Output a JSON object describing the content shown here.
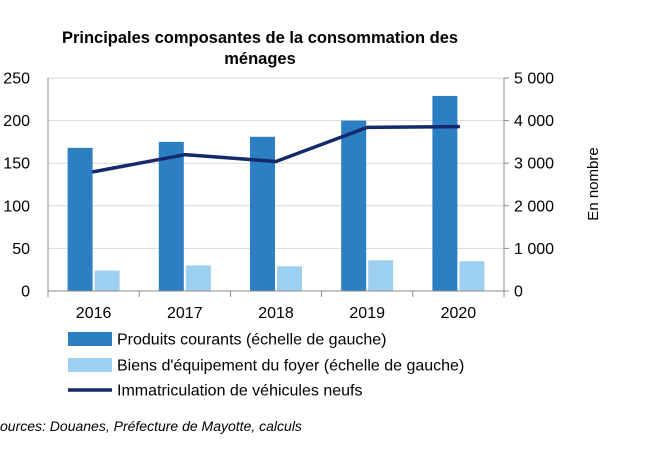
{
  "chart_data": {
    "type": "bar",
    "title_line1": "Principales composantes de la consommation des",
    "title_line2": "ménages",
    "categories": [
      "2016",
      "2017",
      "2018",
      "2019",
      "2020"
    ],
    "left_axis": {
      "ylim": [
        0,
        250
      ],
      "ticks": [
        "0",
        "50",
        "100",
        "150",
        "200",
        "250"
      ]
    },
    "right_axis": {
      "ylim": [
        0,
        5000
      ],
      "label": "En nombre",
      "ticks": [
        "0",
        "1 000",
        "2 000",
        "3 000",
        "4 000",
        "5 000"
      ]
    },
    "series": [
      {
        "name": "Produits courants (échelle de gauche)",
        "type": "bar",
        "axis": "left",
        "color": "#2b7fc2",
        "values": [
          168,
          175,
          181,
          200,
          229
        ]
      },
      {
        "name": "Biens d'équipement du foyer (échelle de gauche)",
        "type": "bar",
        "axis": "left",
        "color": "#9dcff0",
        "values": [
          24,
          30,
          29,
          36,
          35
        ]
      },
      {
        "name": "Immatriculation de véhicules neufs",
        "type": "line",
        "axis": "right",
        "color": "#142a6b",
        "values": [
          2800,
          3200,
          3040,
          3840,
          3860
        ]
      }
    ],
    "grid": true,
    "legend_position": "bottom",
    "source": "ources: Douanes, Préfecture de Mayotte, calculs"
  }
}
